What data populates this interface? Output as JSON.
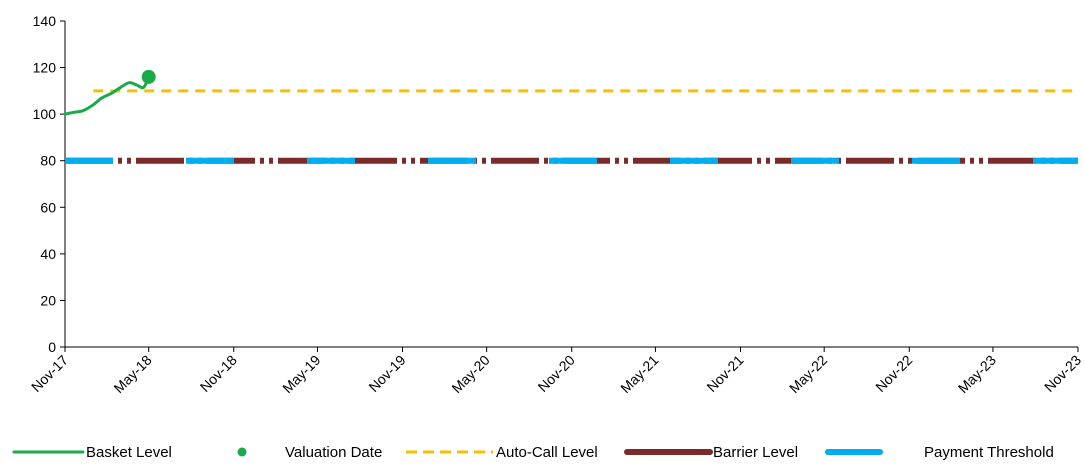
{
  "chart_data": {
    "type": "line",
    "title": "",
    "xlabel": "",
    "ylabel": "",
    "ylim": [
      0,
      140
    ],
    "yticks": [
      0,
      20,
      40,
      60,
      80,
      100,
      120,
      140
    ],
    "xlim": [
      "2017-11",
      "2023-11"
    ],
    "xticks": [
      {
        "date": "2017-11",
        "label": "Nov-17"
      },
      {
        "date": "2018-05",
        "label": "May-18"
      },
      {
        "date": "2018-11",
        "label": "Nov-18"
      },
      {
        "date": "2019-05",
        "label": "May-19"
      },
      {
        "date": "2019-11",
        "label": "Nov-19"
      },
      {
        "date": "2020-05",
        "label": "May-20"
      },
      {
        "date": "2020-11",
        "label": "Nov-20"
      },
      {
        "date": "2021-05",
        "label": "May-21"
      },
      {
        "date": "2021-11",
        "label": "Nov-21"
      },
      {
        "date": "2022-05",
        "label": "May-22"
      },
      {
        "date": "2022-11",
        "label": "Nov-22"
      },
      {
        "date": "2023-05",
        "label": "May-23"
      },
      {
        "date": "2023-11",
        "label": "Nov-23"
      }
    ],
    "grid": false,
    "legend_position": "bottom",
    "series": [
      {
        "name": "Basket Level",
        "color": "#1aaa4a",
        "style": "solid",
        "points": [
          [
            "2017-11-01",
            100.0
          ],
          [
            "2017-11-20",
            100.8
          ],
          [
            "2017-12-10",
            101.5
          ],
          [
            "2018-01-01",
            104.0
          ],
          [
            "2018-01-20",
            107.0
          ],
          [
            "2018-02-10",
            109.0
          ],
          [
            "2018-03-01",
            111.5
          ],
          [
            "2018-03-20",
            113.5
          ],
          [
            "2018-04-05",
            112.5
          ],
          [
            "2018-04-20",
            111.5
          ],
          [
            "2018-05-01",
            116.0
          ]
        ]
      },
      {
        "name": "Valuation Date",
        "color": "#1aaa4a",
        "style": "marker",
        "points": [
          [
            "2018-05-01",
            116.0
          ]
        ]
      },
      {
        "name": "Auto-Call Level",
        "color": "#f5c000",
        "style": "dashed",
        "points": [
          [
            "2018-01-01",
            110
          ],
          [
            "2023-11-01",
            110
          ]
        ]
      },
      {
        "name": "Barrier Level",
        "color": "#7b2a2a",
        "style": "dashdot",
        "points": [
          [
            "2017-11-01",
            80
          ],
          [
            "2023-11-01",
            80
          ]
        ]
      },
      {
        "name": "Payment Threshold",
        "color": "#00aeef",
        "style": "longdash",
        "points": [
          [
            "2017-11-01",
            80
          ],
          [
            "2023-11-01",
            80
          ]
        ]
      }
    ]
  }
}
